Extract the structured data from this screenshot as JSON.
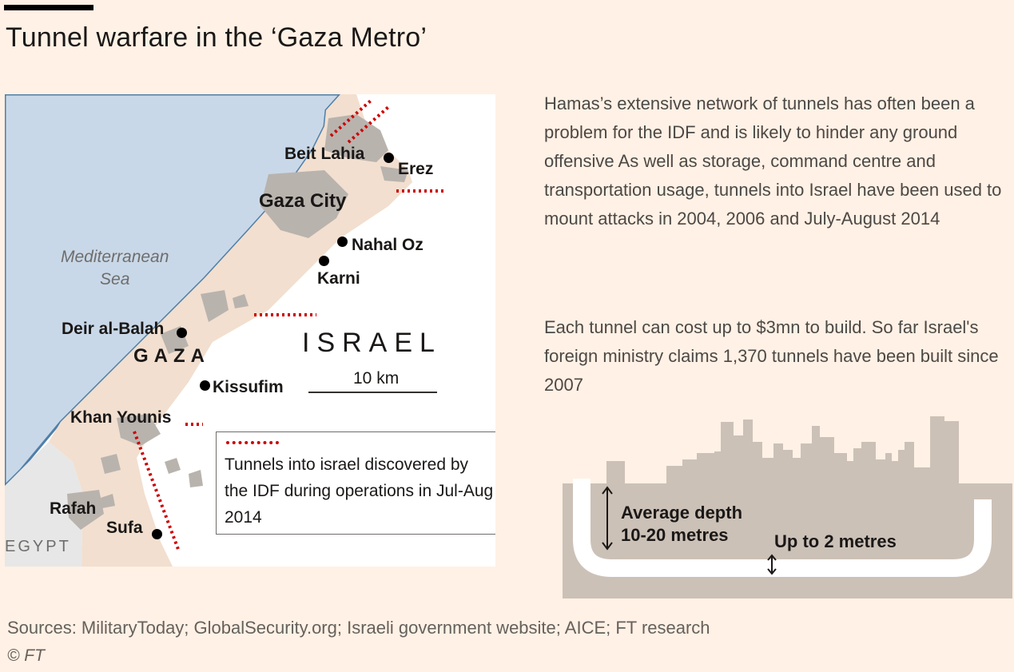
{
  "header": {
    "title": "Tunnel warfare in the ‘Gaza Metro’"
  },
  "map": {
    "sea_label_line1": "Mediterranean",
    "sea_label_line2": "Sea",
    "country_label": "ISRAEL",
    "territory_label": "GAZA",
    "neighbor_label": "EGYPT",
    "scale_label": "10 km",
    "places": {
      "beit_lahia": "Beit Lahia",
      "erez": "Erez",
      "gaza_city": "Gaza City",
      "nahal_oz": "Nahal Oz",
      "karni": "Karni",
      "deir_al_balah": "Deir al-Balah",
      "kissufim": "Kissufim",
      "khan_younis": "Khan Younis",
      "rafah": "Rafah",
      "sufa": "Sufa"
    },
    "colors": {
      "sea": "#c9d8e8",
      "sea_edge": "#4f7fa8",
      "gaza_land": "#f2dfcf",
      "built_up": "#b9b3ae",
      "egypt": "#e7e7e7",
      "israel": "#ffffff",
      "tunnel": "#cc0000"
    }
  },
  "legend": {
    "text": "Tunnels into israel discovered by the IDF during operations in Jul-Aug 2014"
  },
  "paragraphs": {
    "first": "Hamas’s  extensive network of tunnels has often been a problem for the IDF and is likely to hinder any ground offensive As well as storage, command centre and transportation usage, tunnels into Israel have been used to mount attacks in 2004, 2006 and July-August 2014",
    "second": "Each tunnel can cost up to $3mn to build. So far Israel's foreign ministry claims 1,370 tunnels have been built since 2007"
  },
  "diagram": {
    "depth_label_line1": "Average depth",
    "depth_label_line2": "10-20 metres",
    "height_label": "Up to 2 metres",
    "colors": {
      "ground": "#ccc1b7",
      "tunnel": "#ffffff"
    }
  },
  "footer": {
    "sources": "Sources: MilitaryToday; GlobalSecurity.org; Israeli government website; AICE; FT research",
    "copyright": "© FT"
  }
}
